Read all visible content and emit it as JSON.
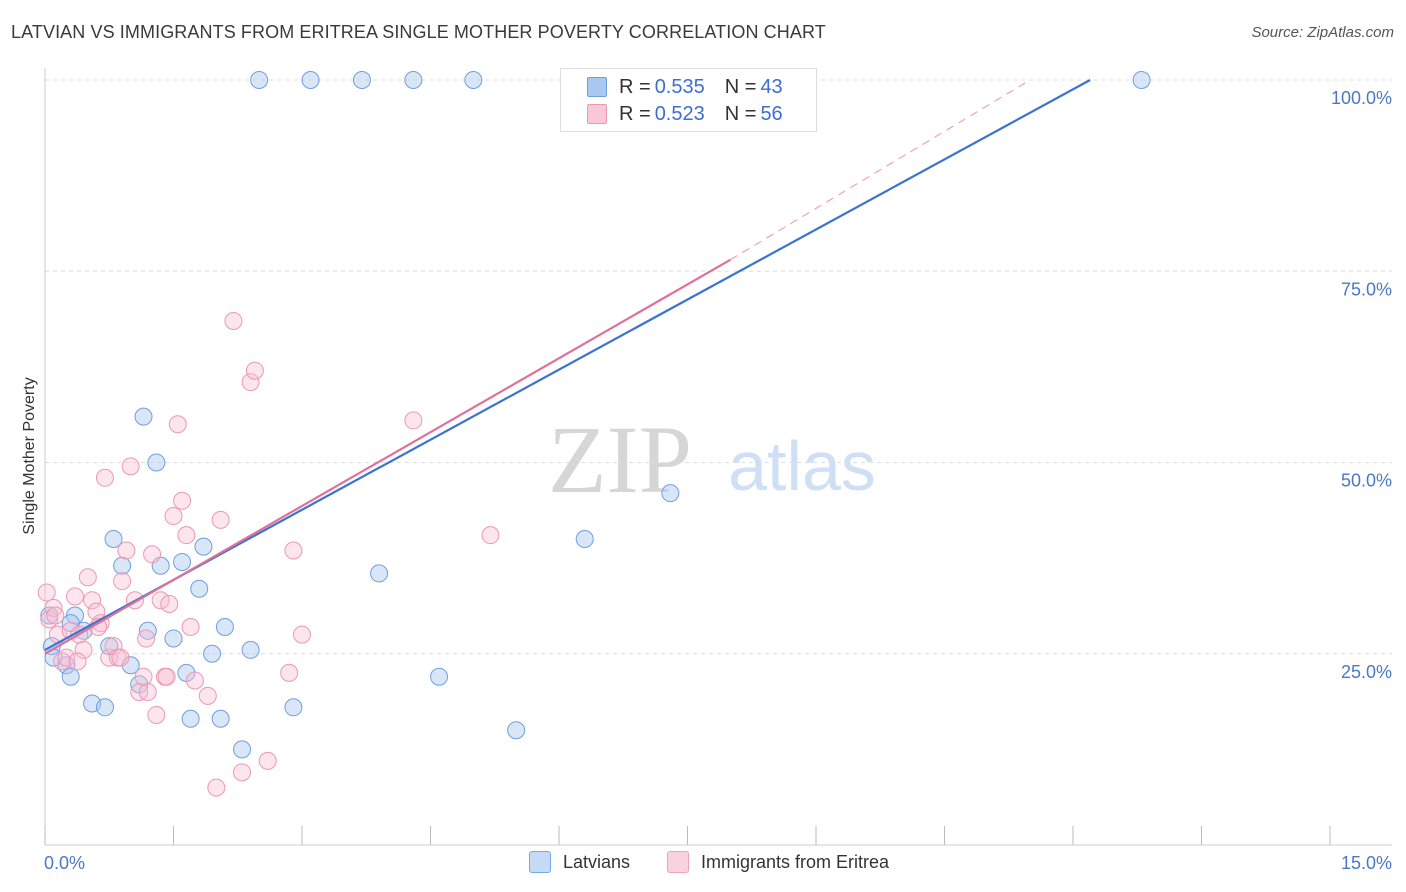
{
  "header": {
    "title": "LATVIAN VS IMMIGRANTS FROM ERITREA SINGLE MOTHER POVERTY CORRELATION CHART",
    "source": "Source: ZipAtlas.com"
  },
  "watermark": {
    "zip": "ZIP",
    "atlas": "atlas"
  },
  "legend_top": {
    "rows": [
      {
        "r_label": "R = ",
        "r_value": "0.535",
        "n_label": "N = ",
        "n_value": "43",
        "color": "#a8c8f0"
      },
      {
        "r_label": "R = ",
        "r_value": "0.523",
        "n_label": "N = ",
        "n_value": "56",
        "color": "#f4b8cc"
      }
    ]
  },
  "legend_bottom": [
    {
      "label": "Latvians",
      "color": "#a8c8f0"
    },
    {
      "label": "Immigrants from Eritrea",
      "color": "#f4b8cc"
    }
  ],
  "chart_data": {
    "type": "scatter",
    "title": "LATVIAN VS IMMIGRANTS FROM ERITREA SINGLE MOTHER POVERTY CORRELATION CHART",
    "xlabel": "",
    "ylabel": "Single Mother Poverty",
    "xlim": [
      0,
      15
    ],
    "ylim": [
      0,
      100
    ],
    "x_tick_labels": [
      "0.0%",
      "15.0%"
    ],
    "y_ticks": [
      25,
      50,
      75,
      100
    ],
    "y_tick_labels": [
      "25.0%",
      "50.0%",
      "75.0%",
      "100.0%"
    ],
    "grid": true,
    "legend_placement": "top-center and bottom",
    "colors": {
      "latvians": "#4a90d9",
      "eritrea": "#e8759a",
      "latvians_line": "#3a74d0",
      "eritrea_line": "#e0709a"
    },
    "series": [
      {
        "name": "Latvians",
        "trend": {
          "x": [
            0,
            12.2
          ],
          "y": [
            25.5,
            100
          ]
        },
        "points": [
          [
            0.05,
            30.0
          ],
          [
            0.08,
            26.0
          ],
          [
            0.1,
            24.5
          ],
          [
            0.25,
            23.5
          ],
          [
            0.3,
            22.0
          ],
          [
            0.35,
            30.0
          ],
          [
            0.45,
            28.0
          ],
          [
            0.55,
            18.5
          ],
          [
            0.7,
            18.0
          ],
          [
            0.75,
            26.0
          ],
          [
            0.8,
            40.0
          ],
          [
            0.9,
            36.5
          ],
          [
            1.0,
            23.5
          ],
          [
            1.1,
            21.0
          ],
          [
            1.15,
            56.0
          ],
          [
            1.2,
            28.0
          ],
          [
            1.3,
            50.0
          ],
          [
            1.35,
            36.5
          ],
          [
            1.5,
            27.0
          ],
          [
            1.6,
            37.0
          ],
          [
            1.65,
            22.5
          ],
          [
            1.7,
            16.5
          ],
          [
            1.8,
            33.5
          ],
          [
            1.85,
            39.0
          ],
          [
            1.95,
            25.0
          ],
          [
            2.05,
            16.5
          ],
          [
            2.1,
            28.5
          ],
          [
            2.3,
            12.5
          ],
          [
            2.4,
            25.5
          ],
          [
            2.5,
            100.0
          ],
          [
            2.9,
            18.0
          ],
          [
            3.1,
            100.0
          ],
          [
            3.7,
            100.0
          ],
          [
            3.9,
            35.5
          ],
          [
            4.3,
            100.0
          ],
          [
            4.6,
            22.0
          ],
          [
            5.0,
            100.0
          ],
          [
            5.5,
            15.0
          ],
          [
            6.2,
            100.0
          ],
          [
            6.3,
            40.0
          ],
          [
            7.3,
            46.0
          ],
          [
            12.8,
            100.0
          ],
          [
            0.3,
            29.0
          ]
        ]
      },
      {
        "name": "Immigrants from Eritrea",
        "trend": {
          "x": [
            0,
            8.0
          ],
          "y": [
            25.0,
            76.5
          ],
          "dashed_to": [
            11.5,
            100
          ]
        },
        "points": [
          [
            0.02,
            33.0
          ],
          [
            0.05,
            29.5
          ],
          [
            0.1,
            31.0
          ],
          [
            0.15,
            27.5
          ],
          [
            0.2,
            24.0
          ],
          [
            0.25,
            24.5
          ],
          [
            0.3,
            28.0
          ],
          [
            0.35,
            32.5
          ],
          [
            0.4,
            27.5
          ],
          [
            0.45,
            25.5
          ],
          [
            0.5,
            35.0
          ],
          [
            0.55,
            32.0
          ],
          [
            0.6,
            30.5
          ],
          [
            0.65,
            29.0
          ],
          [
            0.7,
            48.0
          ],
          [
            0.75,
            24.5
          ],
          [
            0.8,
            26.0
          ],
          [
            0.85,
            24.5
          ],
          [
            0.9,
            34.5
          ],
          [
            0.95,
            38.5
          ],
          [
            1.0,
            49.5
          ],
          [
            1.05,
            32.0
          ],
          [
            1.1,
            20.0
          ],
          [
            1.15,
            22.0
          ],
          [
            1.2,
            20.0
          ],
          [
            1.25,
            38.0
          ],
          [
            1.3,
            17.0
          ],
          [
            1.35,
            32.0
          ],
          [
            1.4,
            22.0
          ],
          [
            1.45,
            31.5
          ],
          [
            1.5,
            43.0
          ],
          [
            1.55,
            55.0
          ],
          [
            1.6,
            45.0
          ],
          [
            1.65,
            40.5
          ],
          [
            1.7,
            28.5
          ],
          [
            1.75,
            21.5
          ],
          [
            1.9,
            19.5
          ],
          [
            2.0,
            7.5
          ],
          [
            2.05,
            42.5
          ],
          [
            2.2,
            68.5
          ],
          [
            2.3,
            9.5
          ],
          [
            2.4,
            60.5
          ],
          [
            2.45,
            62.0
          ],
          [
            2.6,
            11.0
          ],
          [
            2.85,
            22.5
          ],
          [
            2.9,
            38.5
          ],
          [
            3.0,
            27.5
          ],
          [
            4.3,
            55.5
          ],
          [
            5.2,
            40.5
          ],
          [
            6.7,
            100.0
          ],
          [
            0.12,
            30.0
          ],
          [
            0.38,
            24.0
          ],
          [
            0.62,
            28.5
          ],
          [
            0.88,
            24.5
          ],
          [
            1.18,
            27.0
          ],
          [
            1.42,
            22.0
          ]
        ]
      }
    ]
  }
}
